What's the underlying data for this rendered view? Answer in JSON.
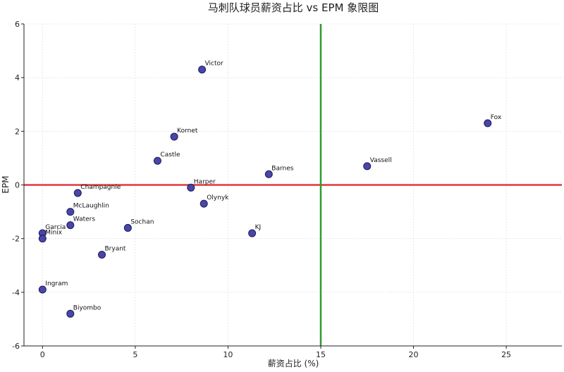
{
  "chart_data": {
    "type": "scatter",
    "title": "马刺队球员薪资占比 vs EPM 象限图",
    "xlabel": "薪资占比 (%)",
    "ylabel": "EPM",
    "xlim": [
      -1,
      28
    ],
    "ylim": [
      -6,
      6
    ],
    "xticks": [
      0,
      5,
      10,
      15,
      20,
      25
    ],
    "yticks": [
      -6,
      -4,
      -2,
      0,
      2,
      4,
      6
    ],
    "grid": true,
    "ref_lines": {
      "vertical_x": 15,
      "horizontal_y": 0
    },
    "colors": {
      "points": "#4a46a8",
      "vertical_line": "#2e9a2e",
      "horizontal_line": "#e0383e"
    },
    "points": [
      {
        "label": "Victor",
        "x": 8.6,
        "y": 4.3
      },
      {
        "label": "Fox",
        "x": 24.0,
        "y": 2.3
      },
      {
        "label": "Kornet",
        "x": 7.1,
        "y": 1.8
      },
      {
        "label": "Castle",
        "x": 6.2,
        "y": 0.9
      },
      {
        "label": "Vassell",
        "x": 17.5,
        "y": 0.7
      },
      {
        "label": "Barnes",
        "x": 12.2,
        "y": 0.4
      },
      {
        "label": "Harper",
        "x": 8.0,
        "y": -0.1
      },
      {
        "label": "Champagnie",
        "x": 1.9,
        "y": -0.3
      },
      {
        "label": "Olynyk",
        "x": 8.7,
        "y": -0.7
      },
      {
        "label": "McLaughlin",
        "x": 1.5,
        "y": -1.0
      },
      {
        "label": "Waters",
        "x": 1.5,
        "y": -1.5
      },
      {
        "label": "Sochan",
        "x": 4.6,
        "y": -1.6
      },
      {
        "label": "KJ",
        "x": 11.3,
        "y": -1.8
      },
      {
        "label": "Garcia",
        "x": 0.0,
        "y": -1.8
      },
      {
        "label": "Minix",
        "x": 0.0,
        "y": -2.0
      },
      {
        "label": "Bryant",
        "x": 3.2,
        "y": -2.6
      },
      {
        "label": "Ingram",
        "x": 0.0,
        "y": -3.9
      },
      {
        "label": "Biyombo",
        "x": 1.5,
        "y": -4.8
      }
    ]
  }
}
